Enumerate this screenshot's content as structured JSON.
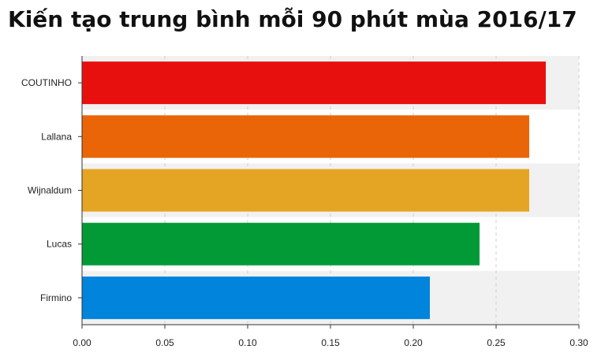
{
  "chart_data": {
    "type": "bar",
    "orientation": "horizontal",
    "title": "Kiến tạo trung bình mỗi 90 phút mùa 2016/17",
    "xlabel": "",
    "ylabel": "",
    "categories": [
      "COUTINHO",
      "Lallana",
      "Wijnaldum",
      "Lucas",
      "Firmino"
    ],
    "values": [
      0.28,
      0.27,
      0.27,
      0.24,
      0.21
    ],
    "colors": [
      "#e8100f",
      "#ea6508",
      "#e5a524",
      "#019a37",
      "#0184db"
    ],
    "xlim": [
      0,
      0.3
    ],
    "x_ticks": [
      "0.00",
      "0.05",
      "0.10",
      "0.15",
      "0.20",
      "0.25",
      "0.30"
    ],
    "grid": "vertical dashed",
    "band_colors": [
      "#f1f1f1",
      "#ffffff"
    ]
  }
}
